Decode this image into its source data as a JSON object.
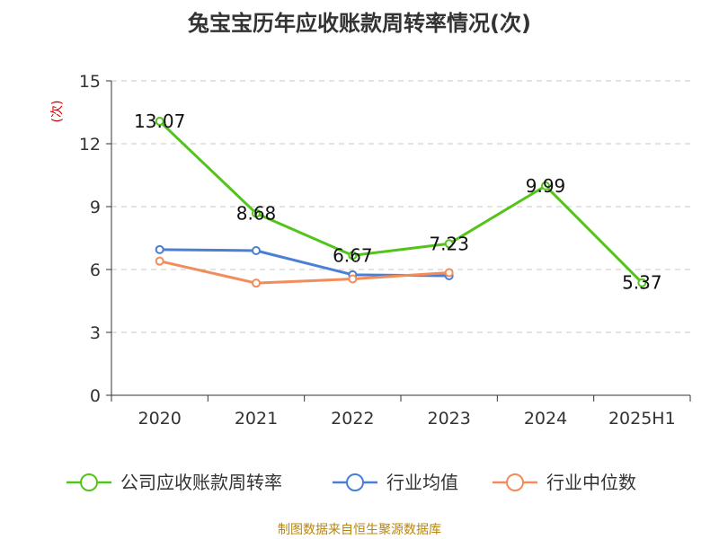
{
  "chart_data": {
    "type": "line",
    "title": "兔宝宝历年应收账款周转率情况(次)",
    "ylabel": "(次)",
    "xlabel": "",
    "categories": [
      "2020",
      "2021",
      "2022",
      "2023",
      "2024",
      "2025H1"
    ],
    "ylim": [
      0,
      15
    ],
    "yticks": [
      0,
      3,
      6,
      9,
      12,
      15
    ],
    "grid": true,
    "legend_position": "bottom",
    "series": [
      {
        "name": "公司应收账款周转率",
        "color": "#52c41a",
        "values": [
          13.07,
          8.68,
          6.67,
          7.23,
          9.99,
          5.37
        ],
        "labels": [
          "13.07",
          "8.68",
          "6.67",
          "7.23",
          "9.99",
          "5.37"
        ]
      },
      {
        "name": "行业均值",
        "color": "#4a7fd4",
        "values": [
          6.95,
          6.9,
          5.75,
          5.7,
          null,
          null
        ]
      },
      {
        "name": "行业中位数",
        "color": "#f28c5a",
        "values": [
          6.4,
          5.35,
          5.55,
          5.85,
          null,
          null
        ]
      }
    ],
    "source": "制图数据来自恒生聚源数据库"
  }
}
